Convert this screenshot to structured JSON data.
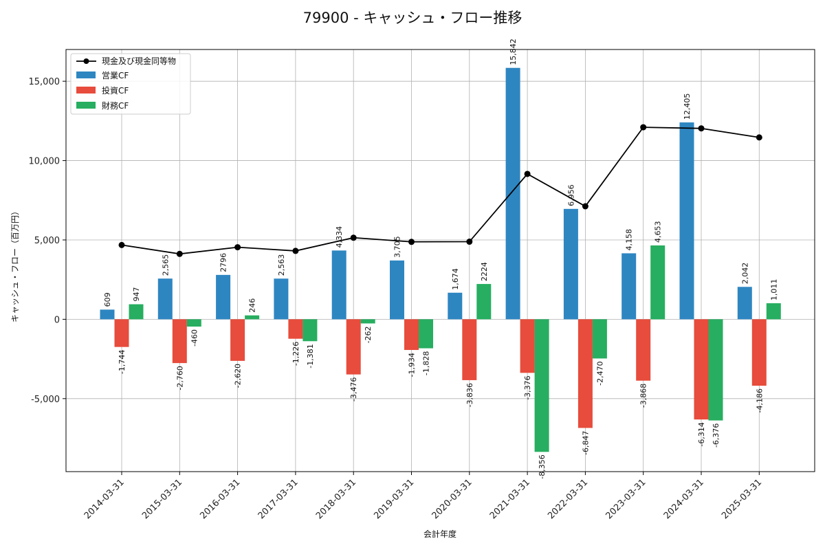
{
  "chart_data": {
    "type": "bar",
    "title": "79900 - キャッシュ・フロー推移",
    "xlabel": "会計年度",
    "ylabel": "キャッシュ・フロー（百万円）",
    "ylim": [
      -9600,
      17000
    ],
    "yticks": [
      -5000,
      0,
      5000,
      10000,
      15000
    ],
    "ytick_labels": [
      "-5,000",
      "0",
      "5,000",
      "10,000",
      "15,000"
    ],
    "grid": true,
    "legend_position": "top-left",
    "categories": [
      "2014-03-31",
      "2015-03-31",
      "2016-03-31",
      "2017-03-31",
      "2018-03-31",
      "2019-03-31",
      "2020-03-31",
      "2021-03-31",
      "2022-03-31",
      "2023-03-31",
      "2024-03-31",
      "2025-03-31"
    ],
    "series": [
      {
        "name": "営業CF",
        "kind": "bar",
        "color": "#2e86c1",
        "values": [
          609,
          2565,
          2796,
          2563,
          4334,
          3705,
          1674,
          15842,
          6956,
          4158,
          12405,
          2042
        ],
        "labels": [
          "609",
          "2,565",
          "2796",
          "2,563",
          "4,334",
          "3,705",
          "1,674",
          "15,842",
          "6,956",
          "4,158",
          "12,405",
          "2,042"
        ]
      },
      {
        "name": "投資CF",
        "kind": "bar",
        "color": "#e74c3c",
        "values": [
          -1744,
          -2760,
          -2620,
          -1226,
          -3476,
          -1934,
          -3836,
          -3376,
          -6847,
          -3868,
          -6314,
          -4186
        ],
        "labels": [
          "-1,744",
          "-2,760",
          "-2,620",
          "-1,226",
          "-3,476",
          "-1,934",
          "-3,836",
          "-3,376",
          "-6,847",
          "-3,868",
          "-6,314",
          "-4,186"
        ]
      },
      {
        "name": "財務CF",
        "kind": "bar",
        "color": "#27ae60",
        "values": [
          947,
          -460,
          246,
          -1381,
          -262,
          -1828,
          2224,
          -8356,
          -2470,
          4653,
          -6376,
          1011
        ],
        "labels": [
          "947",
          "-460",
          "246",
          "-1,381",
          "-262",
          "-1,828",
          "2224",
          "-8,356",
          "-2,470",
          "4,653",
          "-6,376",
          "1,011"
        ]
      },
      {
        "name": "現金及び現金同等物",
        "kind": "line",
        "color": "#000000",
        "values": [
          4680,
          4120,
          4540,
          4310,
          5140,
          4880,
          4890,
          9160,
          7120,
          12100,
          12030,
          11460
        ]
      }
    ]
  }
}
